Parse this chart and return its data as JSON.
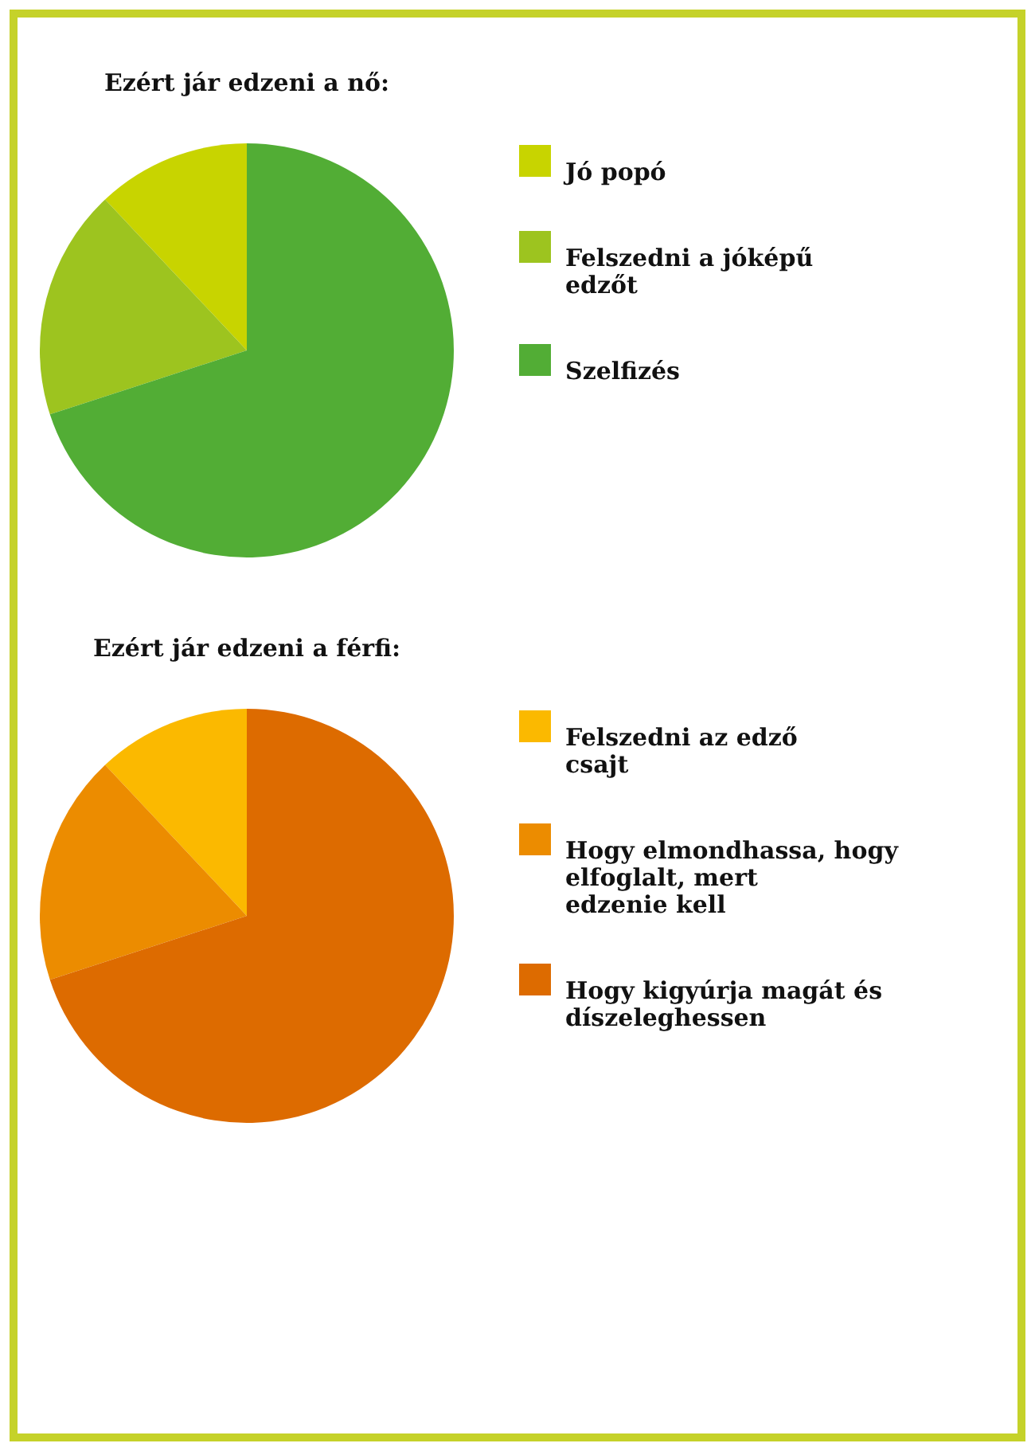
{
  "chart_data": [
    {
      "type": "pie",
      "title": "Ezért jár edzeni a nő:",
      "categories": [
        "Jó popó",
        "Felszedni a jóképű edzőt",
        "Szelfizés"
      ],
      "values": [
        12,
        18,
        70
      ],
      "colors": [
        "#c8d400",
        "#9dc41f",
        "#52ad35"
      ],
      "legend": "right"
    },
    {
      "type": "pie",
      "title": "Ezért jár edzeni a férfi:",
      "categories": [
        "Felszedni az edző csajt",
        "Hogy elmondhassa, hogy elfoglalt, mert edzenie kell",
        "Hogy kigyúrja magát és díszeleghessen"
      ],
      "values": [
        12,
        18,
        70
      ],
      "colors": [
        "#fbb900",
        "#ec8c00",
        "#dd6b00"
      ],
      "legend": "right"
    }
  ]
}
